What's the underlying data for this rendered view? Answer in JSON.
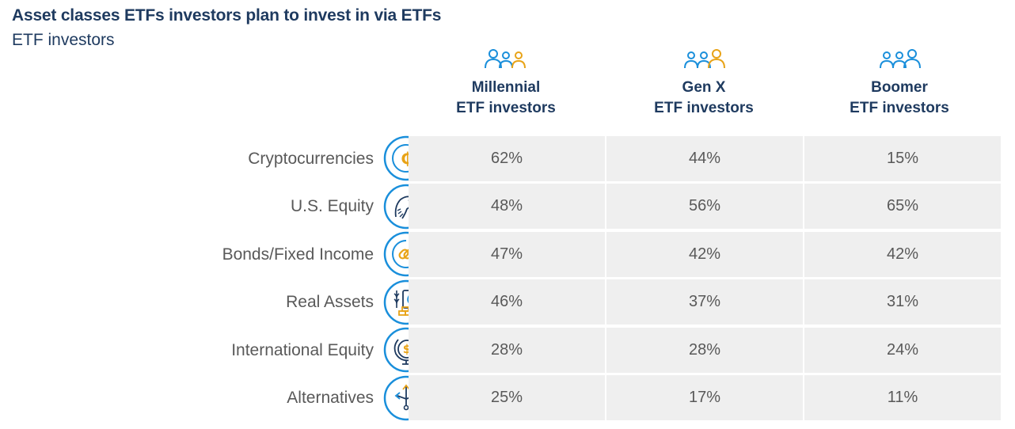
{
  "title": "Asset classes ETFs investors plan to invest in via ETFs",
  "subtitle": "ETF investors",
  "colors": {
    "navy": "#1e3a5f",
    "blue": "#1a8fdb",
    "gold": "#e8a317",
    "cell": "#efefef",
    "text": "#595959"
  },
  "chart_data": {
    "type": "table",
    "columns": [
      {
        "line1": "Millennial",
        "line2": "ETF investors"
      },
      {
        "line1": "Gen X",
        "line2": "ETF investors"
      },
      {
        "line1": "Boomer",
        "line2": "ETF investors"
      }
    ],
    "rows": [
      {
        "label": "Cryptocurrencies",
        "icon": "crypto-coin-icon",
        "values": [
          "62%",
          "44%",
          "15%"
        ]
      },
      {
        "label": "U.S. Equity",
        "icon": "eagle-icon",
        "values": [
          "48%",
          "56%",
          "65%"
        ]
      },
      {
        "label": "Bonds/Fixed Income",
        "icon": "chain-link-icon",
        "values": [
          "47%",
          "42%",
          "42%"
        ]
      },
      {
        "label": "Real Assets",
        "icon": "commodities-icon",
        "values": [
          "46%",
          "37%",
          "31%"
        ]
      },
      {
        "label": "International Equity",
        "icon": "globe-dollar-icon",
        "values": [
          "28%",
          "28%",
          "24%"
        ]
      },
      {
        "label": "Alternatives",
        "icon": "branching-arrows-icon",
        "values": [
          "25%",
          "17%",
          "11%"
        ]
      }
    ]
  }
}
